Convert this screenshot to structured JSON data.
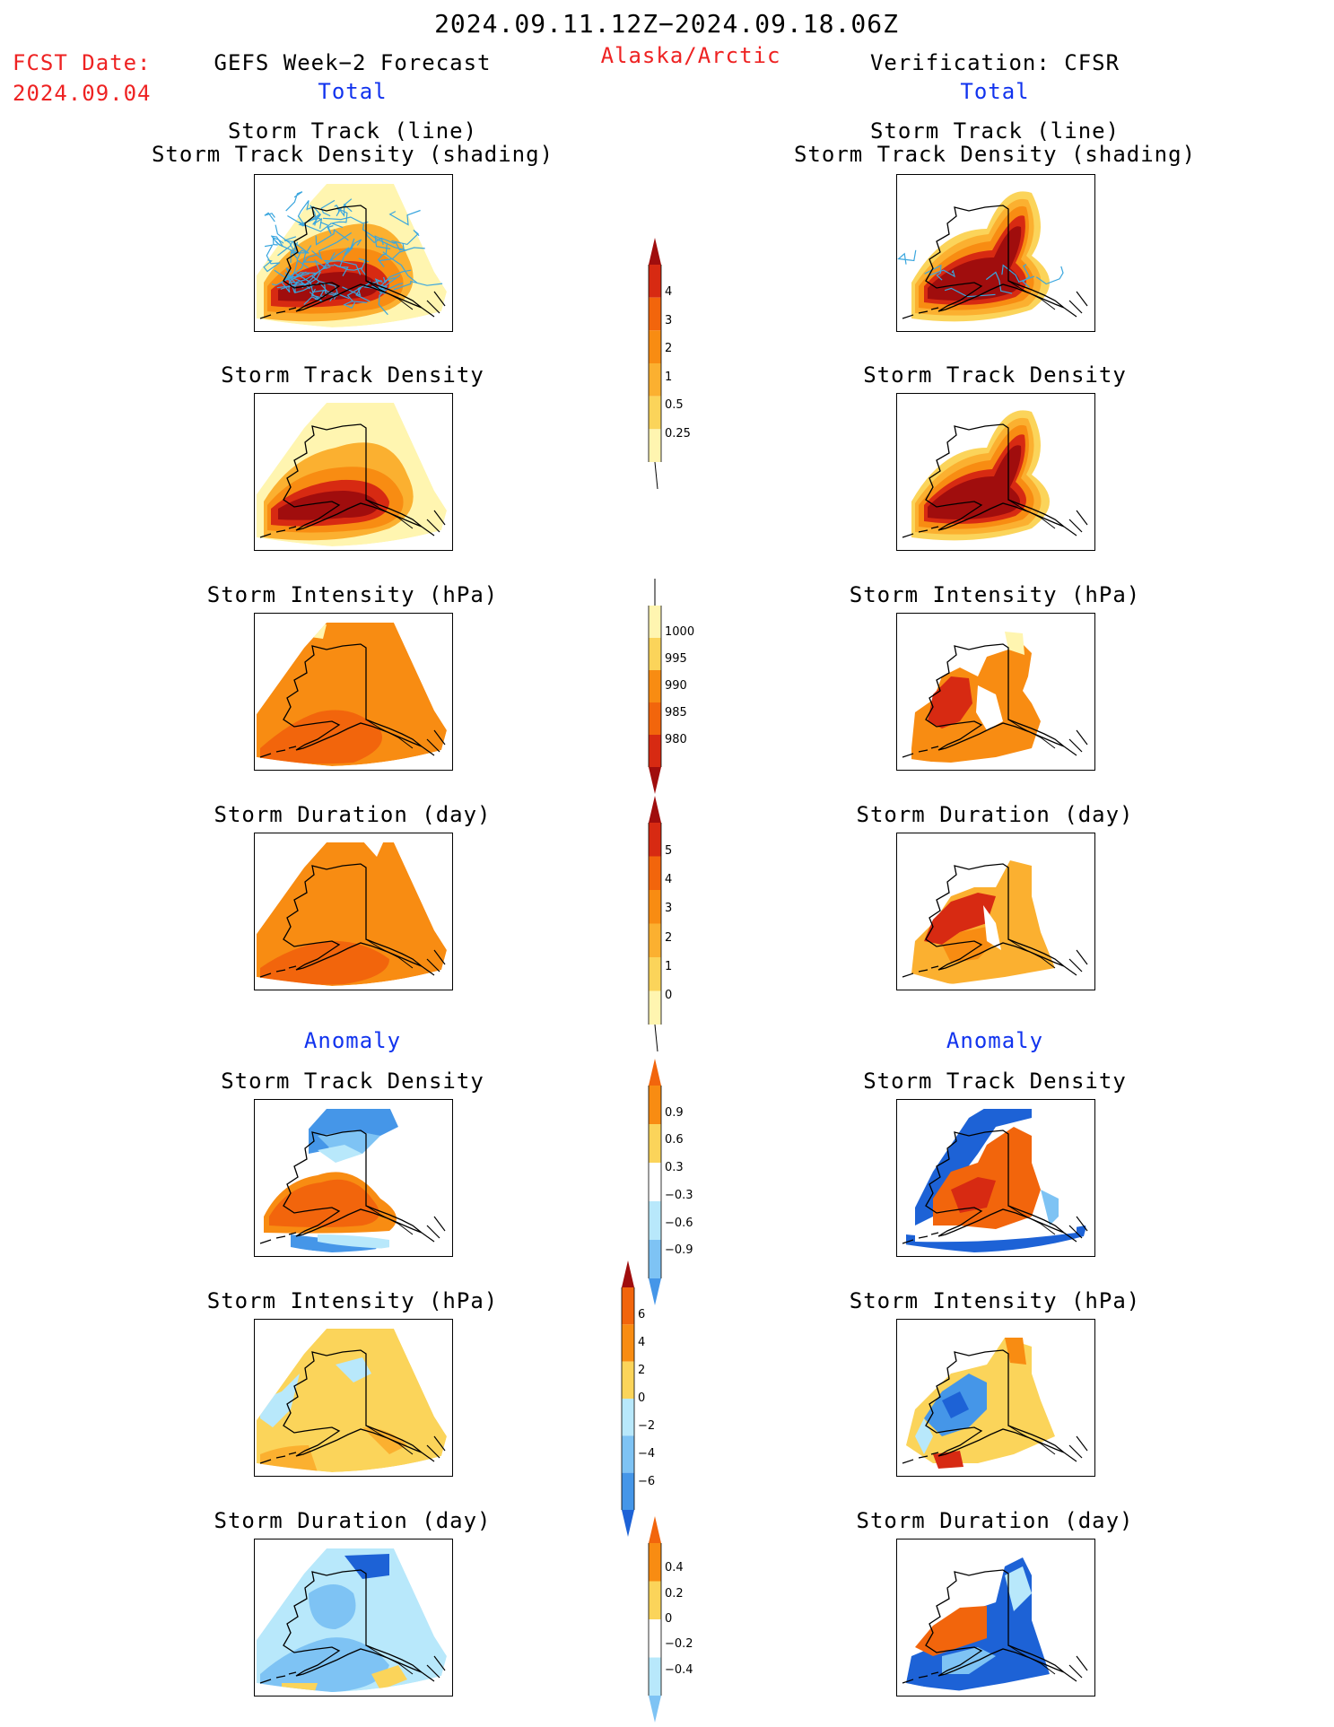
{
  "header": {
    "date_range": "2024.09.11.12Z−2024.09.18.06Z",
    "fcst_label": "FCST Date:",
    "fcst_date": "2024.09.04",
    "left_title": "GEFS Week−2 Forecast",
    "region": "Alaska/Arctic",
    "right_title": "Verification: CFSR",
    "total_left": "Total",
    "total_right": "Total",
    "anomaly_left": "Anomaly",
    "anomaly_right": "Anomaly"
  },
  "panel_titles": {
    "track_line": "Storm Track (line)",
    "track_density_shading": "Storm Track Density (shading)",
    "track_density": "Storm Track Density",
    "intensity": "Storm Intensity (hPa)",
    "duration": "Storm Duration (day)"
  },
  "colors": {
    "yellow_light": "#fff5b0",
    "yellow": "#fbd45a",
    "orange_light": "#fbb030",
    "orange": "#f88c12",
    "orange_dark": "#f2650c",
    "red": "#d72a12",
    "dark_red": "#a00d0d",
    "blue_light": "#b8e8fb",
    "blue_mid": "#7ec3f4",
    "blue": "#4596e8",
    "blue_dark": "#1d62d6",
    "track_line": "#3aa6de"
  },
  "chart_data": [
    {
      "type": "heatmap",
      "panel": "left-total-track",
      "title": "Storm Track (line) / Storm Track Density (shading)",
      "fill": "dark_red"
    },
    {
      "type": "heatmap",
      "panel": "right-total-track",
      "title": "Storm Track (line) / Storm Track Density (shading)",
      "fill": "dark_red"
    },
    {
      "type": "heatmap",
      "panel": "left-total-density",
      "title": "Storm Track Density"
    },
    {
      "type": "heatmap",
      "panel": "right-total-density",
      "title": "Storm Track Density"
    },
    {
      "type": "heatmap",
      "panel": "left-total-intensity",
      "title": "Storm Intensity (hPa)"
    },
    {
      "type": "heatmap",
      "panel": "right-total-intensity",
      "title": "Storm Intensity (hPa)"
    },
    {
      "type": "heatmap",
      "panel": "left-total-duration",
      "title": "Storm Duration (day)"
    },
    {
      "type": "heatmap",
      "panel": "right-total-duration",
      "title": "Storm Duration (day)"
    },
    {
      "type": "heatmap",
      "panel": "left-anom-density",
      "title": "Storm Track Density"
    },
    {
      "type": "heatmap",
      "panel": "right-anom-density",
      "title": "Storm Track Density"
    },
    {
      "type": "heatmap",
      "panel": "left-anom-intensity",
      "title": "Storm Intensity (hPa)"
    },
    {
      "type": "heatmap",
      "panel": "right-anom-intensity",
      "title": "Storm Intensity (hPa)"
    },
    {
      "type": "heatmap",
      "panel": "left-anom-duration",
      "title": "Storm Duration (day)"
    },
    {
      "type": "heatmap",
      "panel": "right-anom-duration",
      "title": "Storm Duration (day)"
    }
  ],
  "colorbars": [
    {
      "id": "density_total",
      "labels": [
        "4",
        "3",
        "2",
        "1",
        "0.5",
        "0.25"
      ],
      "colors": [
        "#a00d0d",
        "#d72a12",
        "#f2650c",
        "#f88c12",
        "#fbb030",
        "#fbd45a",
        "#fff5b0"
      ],
      "arrow": "top"
    },
    {
      "id": "intensity_total",
      "labels": [
        "1000",
        "995",
        "990",
        "985",
        "980"
      ],
      "colors": [
        "#fff5b0",
        "#fbd45a",
        "#f88c12",
        "#f2650c",
        "#d72a12",
        "#a00d0d"
      ],
      "arrow": "bottom"
    },
    {
      "id": "duration_total",
      "labels": [
        "5",
        "4",
        "3",
        "2",
        "1",
        "0"
      ],
      "colors": [
        "#a00d0d",
        "#d72a12",
        "#f2650c",
        "#f88c12",
        "#fbb030",
        "#fbd45a",
        "#fff5b0"
      ],
      "arrow": "top"
    },
    {
      "id": "density_anom",
      "labels": [
        "0.9",
        "0.6",
        "0.3",
        "−0.3",
        "−0.6",
        "−0.9"
      ],
      "colors": [
        "#f2650c",
        "#f88c12",
        "#fbd45a",
        "#ffffff",
        "#b8e8fb",
        "#7ec3f4",
        "#4596e8"
      ],
      "arrow": "both"
    },
    {
      "id": "intensity_anom",
      "labels": [
        "6",
        "4",
        "2",
        "0",
        "−2",
        "−4",
        "−6"
      ],
      "colors": [
        "#a00d0d",
        "#f2650c",
        "#f88c12",
        "#fbd45a",
        "#b8e8fb",
        "#7ec3f4",
        "#4596e8",
        "#1d62d6"
      ],
      "arrow": "both"
    },
    {
      "id": "duration_anom",
      "labels": [
        "0.4",
        "0.2",
        "0",
        "−0.2",
        "−0.4"
      ],
      "colors": [
        "#f2650c",
        "#f88c12",
        "#fbd45a",
        "#ffffff",
        "#b8e8fb",
        "#7ec3f4"
      ],
      "arrow": "both"
    }
  ]
}
